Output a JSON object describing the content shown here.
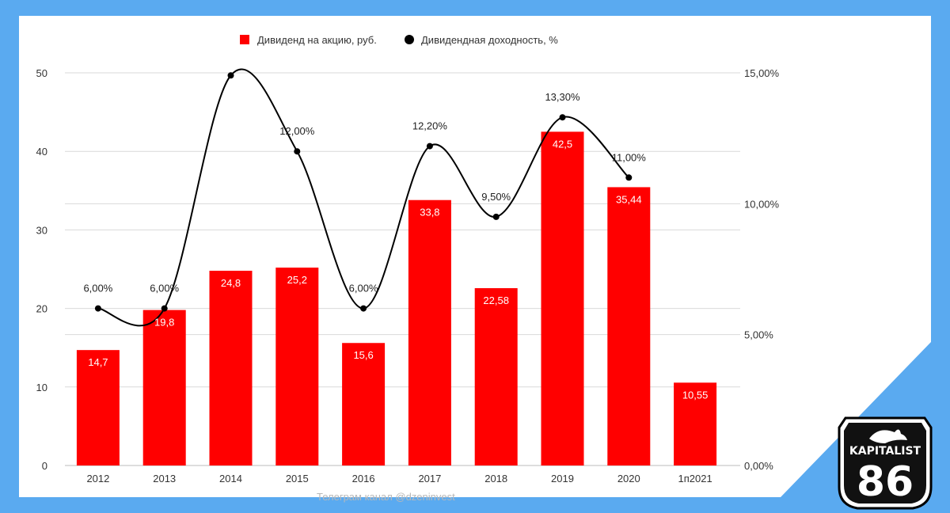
{
  "chart_data": {
    "type": "bar",
    "categories": [
      "2012",
      "2013",
      "2014",
      "2015",
      "2016",
      "2017",
      "2018",
      "2019",
      "2020",
      "1п2021"
    ],
    "series": [
      {
        "name": "Дивиденд на акцию, руб.",
        "type": "bar",
        "axis": "left",
        "color": "#ff0000",
        "values": [
          14.7,
          19.8,
          24.8,
          25.2,
          15.6,
          33.8,
          22.58,
          42.5,
          35.44,
          10.55
        ],
        "labels": [
          "14,7",
          "19,8",
          "24,8",
          "25,2",
          "15,6",
          "33,8",
          "22,58",
          "42,5",
          "35,44",
          "10,55"
        ]
      },
      {
        "name": "Дивидендная доходность, %",
        "type": "line",
        "axis": "right",
        "color": "#000000",
        "smooth": true,
        "values": [
          6.0,
          6.0,
          14.9,
          12.0,
          6.0,
          12.2,
          9.5,
          13.3,
          11.0,
          null
        ],
        "labels": [
          "6,00%",
          "6,00%",
          "",
          "12,00%",
          "6,00%",
          "12,20%",
          "9,50%",
          "13,30%",
          "11,00%",
          ""
        ]
      }
    ],
    "left_axis": {
      "min": 0,
      "max": 50,
      "ticks": [
        "0",
        "10",
        "20",
        "30",
        "40",
        "50"
      ]
    },
    "right_axis": {
      "min": 0,
      "max": 15,
      "ticks": [
        "0,00%",
        "5,00%",
        "10,00%",
        "15,00%"
      ]
    },
    "grid": true,
    "legend": {
      "position": "top",
      "items": [
        "Дивиденд на акцию, руб.",
        "Дивидендная доходность, %"
      ]
    },
    "watermark": "Телеграм канал @dzeninvest"
  },
  "logo": {
    "top_text": "KAPITALIST",
    "number": "86"
  }
}
